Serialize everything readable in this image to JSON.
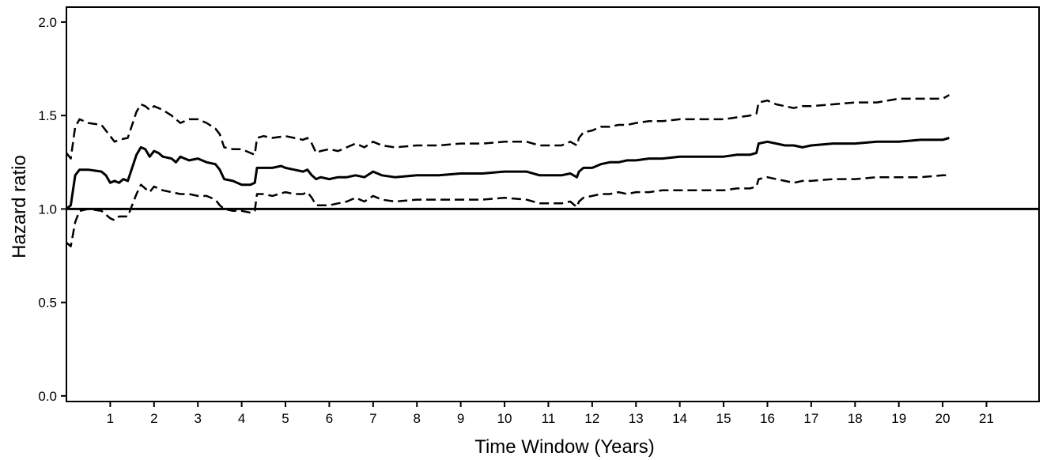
{
  "chart_data": {
    "type": "line",
    "xlabel": "Time Window (Years)",
    "ylabel": "Hazard ratio",
    "xlim": [
      0,
      22.2
    ],
    "ylim": [
      -0.03,
      2.08
    ],
    "xticks": [
      1,
      2,
      3,
      4,
      5,
      6,
      7,
      8,
      9,
      10,
      11,
      12,
      13,
      14,
      15,
      16,
      17,
      18,
      19,
      20,
      21
    ],
    "yticks": [
      0.0,
      0.5,
      1.0,
      1.5,
      2.0
    ],
    "ytick_labels": [
      "0.0",
      "0.5",
      "1.0",
      "1.5",
      "2.0"
    ],
    "grid": false,
    "reference_line": {
      "y": 1.0
    },
    "series": [
      {
        "style": "solid",
        "x": [
          0.0,
          0.1,
          0.2,
          0.3,
          0.5,
          0.8,
          0.9,
          1.0,
          1.1,
          1.2,
          1.3,
          1.4,
          1.5,
          1.6,
          1.7,
          1.8,
          1.9,
          2.0,
          2.1,
          2.2,
          2.4,
          2.5,
          2.6,
          2.7,
          2.8,
          3.0,
          3.2,
          3.4,
          3.5,
          3.6,
          3.8,
          4.0,
          4.2,
          4.3,
          4.35,
          4.5,
          4.7,
          4.9,
          5.0,
          5.2,
          5.4,
          5.5,
          5.6,
          5.7,
          5.8,
          6.0,
          6.2,
          6.4,
          6.6,
          6.8,
          7.0,
          7.2,
          7.5,
          8.0,
          8.5,
          9.0,
          9.5,
          10.0,
          10.5,
          10.8,
          11.0,
          11.3,
          11.5,
          11.65,
          11.7,
          11.8,
          12.0,
          12.2,
          12.4,
          12.6,
          12.8,
          13.0,
          13.3,
          13.6,
          14.0,
          14.5,
          15.0,
          15.3,
          15.6,
          15.75,
          15.8,
          16.0,
          16.2,
          16.4,
          16.6,
          16.8,
          17.0,
          17.5,
          18.0,
          18.5,
          19.0,
          19.5,
          20.0,
          20.15
        ],
        "y": [
          1.0,
          1.02,
          1.18,
          1.21,
          1.21,
          1.2,
          1.18,
          1.14,
          1.15,
          1.14,
          1.16,
          1.15,
          1.22,
          1.29,
          1.33,
          1.32,
          1.28,
          1.31,
          1.3,
          1.28,
          1.27,
          1.25,
          1.28,
          1.27,
          1.26,
          1.27,
          1.25,
          1.24,
          1.21,
          1.16,
          1.15,
          1.13,
          1.13,
          1.14,
          1.22,
          1.22,
          1.22,
          1.23,
          1.22,
          1.21,
          1.2,
          1.21,
          1.18,
          1.16,
          1.17,
          1.16,
          1.17,
          1.17,
          1.18,
          1.17,
          1.2,
          1.18,
          1.17,
          1.18,
          1.18,
          1.19,
          1.19,
          1.2,
          1.2,
          1.18,
          1.18,
          1.18,
          1.19,
          1.17,
          1.2,
          1.22,
          1.22,
          1.24,
          1.25,
          1.25,
          1.26,
          1.26,
          1.27,
          1.27,
          1.28,
          1.28,
          1.28,
          1.29,
          1.29,
          1.3,
          1.35,
          1.36,
          1.35,
          1.34,
          1.34,
          1.33,
          1.34,
          1.35,
          1.35,
          1.36,
          1.36,
          1.37,
          1.37,
          1.38
        ]
      },
      {
        "style": "dashed",
        "x": [
          0.0,
          0.1,
          0.2,
          0.3,
          0.5,
          0.8,
          1.0,
          1.1,
          1.2,
          1.4,
          1.5,
          1.6,
          1.7,
          1.8,
          1.9,
          2.0,
          2.2,
          2.4,
          2.5,
          2.6,
          2.8,
          3.0,
          3.2,
          3.4,
          3.5,
          3.6,
          3.8,
          4.0,
          4.2,
          4.3,
          4.35,
          4.5,
          4.7,
          5.0,
          5.2,
          5.4,
          5.5,
          5.6,
          5.7,
          5.8,
          6.0,
          6.2,
          6.4,
          6.6,
          6.8,
          7.0,
          7.2,
          7.5,
          8.0,
          8.5,
          9.0,
          9.5,
          10.0,
          10.5,
          10.8,
          11.0,
          11.3,
          11.5,
          11.65,
          11.7,
          11.8,
          12.0,
          12.2,
          12.4,
          12.6,
          12.8,
          13.0,
          13.3,
          13.6,
          14.0,
          14.5,
          15.0,
          15.3,
          15.6,
          15.75,
          15.8,
          16.0,
          16.2,
          16.4,
          16.6,
          16.8,
          17.0,
          17.5,
          18.0,
          18.5,
          19.0,
          19.5,
          20.0,
          20.15
        ],
        "y": [
          1.3,
          1.27,
          1.44,
          1.48,
          1.46,
          1.45,
          1.39,
          1.36,
          1.37,
          1.38,
          1.45,
          1.52,
          1.56,
          1.55,
          1.53,
          1.55,
          1.53,
          1.5,
          1.48,
          1.46,
          1.48,
          1.48,
          1.46,
          1.43,
          1.4,
          1.33,
          1.32,
          1.32,
          1.3,
          1.29,
          1.38,
          1.39,
          1.38,
          1.39,
          1.38,
          1.37,
          1.38,
          1.35,
          1.3,
          1.31,
          1.32,
          1.31,
          1.33,
          1.35,
          1.33,
          1.36,
          1.34,
          1.33,
          1.34,
          1.34,
          1.35,
          1.35,
          1.36,
          1.36,
          1.34,
          1.34,
          1.34,
          1.36,
          1.34,
          1.38,
          1.41,
          1.42,
          1.44,
          1.44,
          1.45,
          1.45,
          1.46,
          1.47,
          1.47,
          1.48,
          1.48,
          1.48,
          1.49,
          1.5,
          1.51,
          1.57,
          1.58,
          1.56,
          1.55,
          1.54,
          1.55,
          1.55,
          1.56,
          1.57,
          1.57,
          1.59,
          1.59,
          1.59,
          1.61
        ]
      },
      {
        "style": "dashed",
        "x": [
          0.0,
          0.1,
          0.2,
          0.3,
          0.5,
          0.8,
          1.0,
          1.1,
          1.2,
          1.4,
          1.5,
          1.6,
          1.7,
          1.8,
          1.9,
          2.0,
          2.2,
          2.4,
          2.6,
          2.8,
          3.0,
          3.2,
          3.4,
          3.5,
          3.6,
          3.8,
          4.0,
          4.2,
          4.3,
          4.35,
          4.5,
          4.7,
          5.0,
          5.2,
          5.4,
          5.5,
          5.6,
          5.7,
          5.8,
          6.0,
          6.2,
          6.4,
          6.6,
          6.8,
          7.0,
          7.2,
          7.5,
          8.0,
          8.5,
          9.0,
          9.5,
          10.0,
          10.5,
          10.8,
          11.0,
          11.3,
          11.5,
          11.65,
          11.7,
          11.8,
          12.0,
          12.2,
          12.4,
          12.6,
          12.8,
          13.0,
          13.3,
          13.6,
          14.0,
          14.5,
          15.0,
          15.3,
          15.6,
          15.75,
          15.8,
          16.0,
          16.2,
          16.4,
          16.6,
          16.8,
          17.0,
          17.5,
          18.0,
          18.5,
          19.0,
          19.5,
          20.0,
          20.15
        ],
        "y": [
          0.82,
          0.8,
          0.93,
          0.99,
          1.0,
          0.99,
          0.95,
          0.94,
          0.96,
          0.96,
          1.02,
          1.08,
          1.13,
          1.11,
          1.09,
          1.12,
          1.1,
          1.09,
          1.08,
          1.08,
          1.07,
          1.07,
          1.05,
          1.02,
          1.0,
          0.99,
          0.99,
          0.98,
          0.99,
          1.08,
          1.08,
          1.07,
          1.09,
          1.08,
          1.08,
          1.09,
          1.06,
          1.02,
          1.02,
          1.02,
          1.03,
          1.04,
          1.06,
          1.04,
          1.07,
          1.05,
          1.04,
          1.05,
          1.05,
          1.05,
          1.05,
          1.06,
          1.05,
          1.03,
          1.03,
          1.03,
          1.04,
          1.01,
          1.04,
          1.06,
          1.07,
          1.08,
          1.08,
          1.09,
          1.08,
          1.09,
          1.09,
          1.1,
          1.1,
          1.1,
          1.1,
          1.11,
          1.11,
          1.12,
          1.16,
          1.17,
          1.16,
          1.15,
          1.14,
          1.15,
          1.15,
          1.16,
          1.16,
          1.17,
          1.17,
          1.17,
          1.18,
          1.18
        ]
      }
    ]
  }
}
